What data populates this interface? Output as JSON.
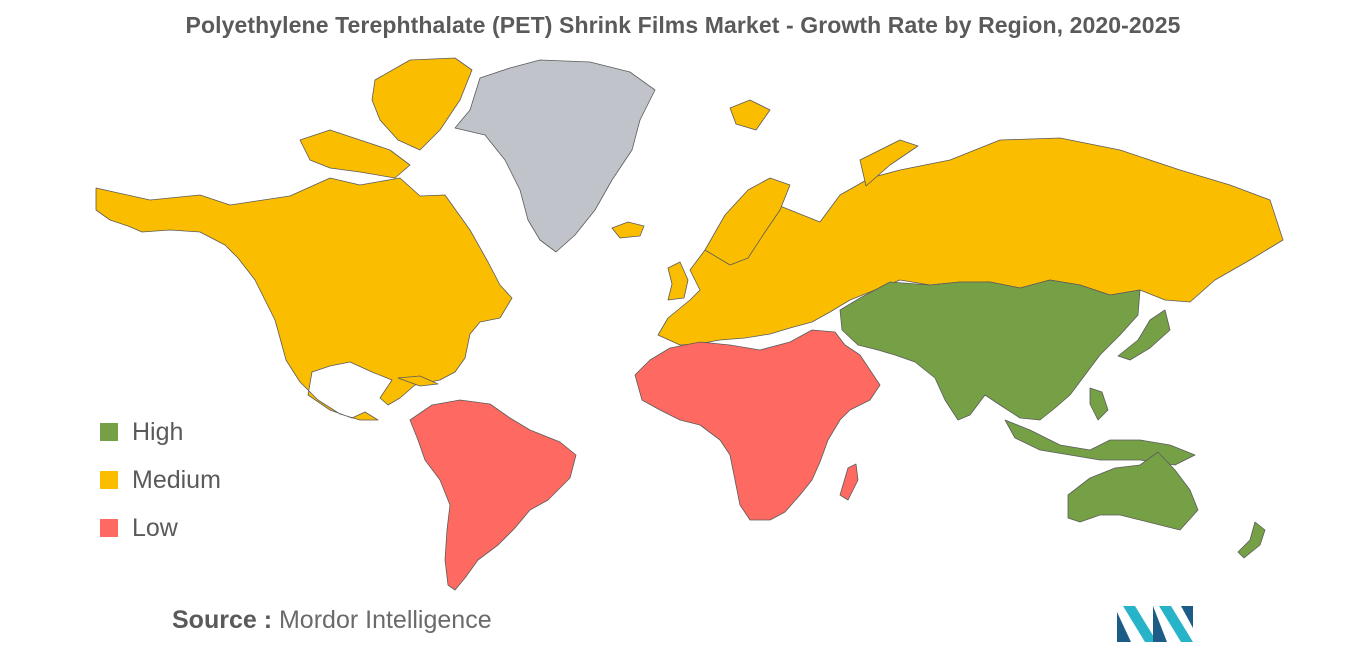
{
  "title": "Polyethylene Terephthalate (PET) Shrink Films Market - Growth Rate by Region, 2020-2025",
  "legend": [
    {
      "label": "High",
      "color": "#76a046"
    },
    {
      "label": "Medium",
      "color": "#fbbd00"
    },
    {
      "label": "Low",
      "color": "#fe6a61"
    }
  ],
  "no_data_color": "#c0c3c9",
  "regions": {
    "north_america": "Medium",
    "europe_russia": "Medium",
    "asia_pacific": "High",
    "south_america": "Low",
    "middle_east_africa": "Low"
  },
  "source": {
    "key": "Source :",
    "value": "Mordor Intelligence"
  },
  "logo_icon": "mordor-intelligence-logo"
}
